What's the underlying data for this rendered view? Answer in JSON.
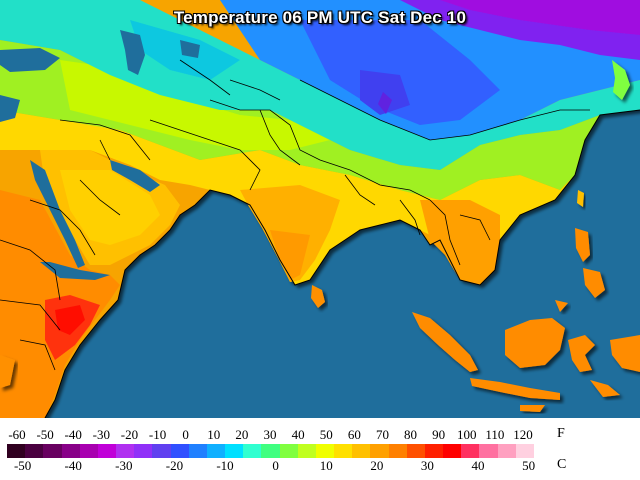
{
  "title": "Temperature 06 PM UTC Sat Dec 10",
  "legend": {
    "fahrenheit_unit": "F",
    "celsius_unit": "C",
    "fahrenheit_ticks": [
      "-60",
      "-50",
      "-40",
      "-30",
      "-20",
      "-10",
      "0",
      "10",
      "20",
      "30",
      "40",
      "50",
      "60",
      "70",
      "80",
      "90",
      "100",
      "110",
      "120"
    ],
    "celsius_ticks": [
      "-50",
      "-40",
      "-30",
      "-20",
      "-10",
      "0",
      "10",
      "20",
      "30",
      "40",
      "50"
    ],
    "colors": [
      "#300020",
      "#4a0040",
      "#680060",
      "#880088",
      "#a800b0",
      "#c000d8",
      "#b030f0",
      "#9030f8",
      "#6040f0",
      "#3050ff",
      "#2080ff",
      "#10b0ff",
      "#00e0ff",
      "#30ffd0",
      "#40ff80",
      "#80ff40",
      "#c0ff20",
      "#f0ff00",
      "#ffe000",
      "#ffc000",
      "#ffa000",
      "#ff8000",
      "#ff5000",
      "#ff2000",
      "#ff0000",
      "#ff3060",
      "#ff70a0",
      "#ffa0c0",
      "#ffd0e0",
      "#ffffff"
    ]
  },
  "map": {
    "ocean_color": "#1f6e9c",
    "border_color": "#000000"
  }
}
